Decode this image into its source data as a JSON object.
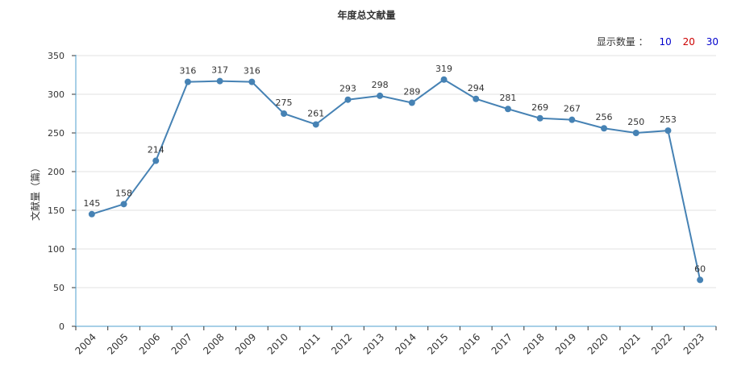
{
  "chart_data": {
    "type": "line",
    "title": "年度总文献量",
    "ylabel": "文献量（篇）",
    "xlabel": "",
    "ylim": [
      0,
      350
    ],
    "yticks": [
      0,
      50,
      100,
      150,
      200,
      250,
      300,
      350
    ],
    "grid": true,
    "categories": [
      "2004",
      "2005",
      "2006",
      "2007",
      "2008",
      "2009",
      "2010",
      "2011",
      "2012",
      "2013",
      "2014",
      "2015",
      "2016",
      "2017",
      "2018",
      "2019",
      "2020",
      "2021",
      "2022",
      "2023"
    ],
    "values": [
      145,
      158,
      214,
      316,
      317,
      316,
      275,
      261,
      293,
      298,
      289,
      319,
      294,
      281,
      269,
      267,
      256,
      250,
      253,
      60
    ],
    "color": "#4682B4"
  },
  "controls": {
    "display_label": "显示数量 ：",
    "options": [
      {
        "label": "10",
        "color": "#0000cc"
      },
      {
        "label": "20",
        "color": "#cc0000"
      },
      {
        "label": "30",
        "color": "#0000cc"
      }
    ]
  }
}
